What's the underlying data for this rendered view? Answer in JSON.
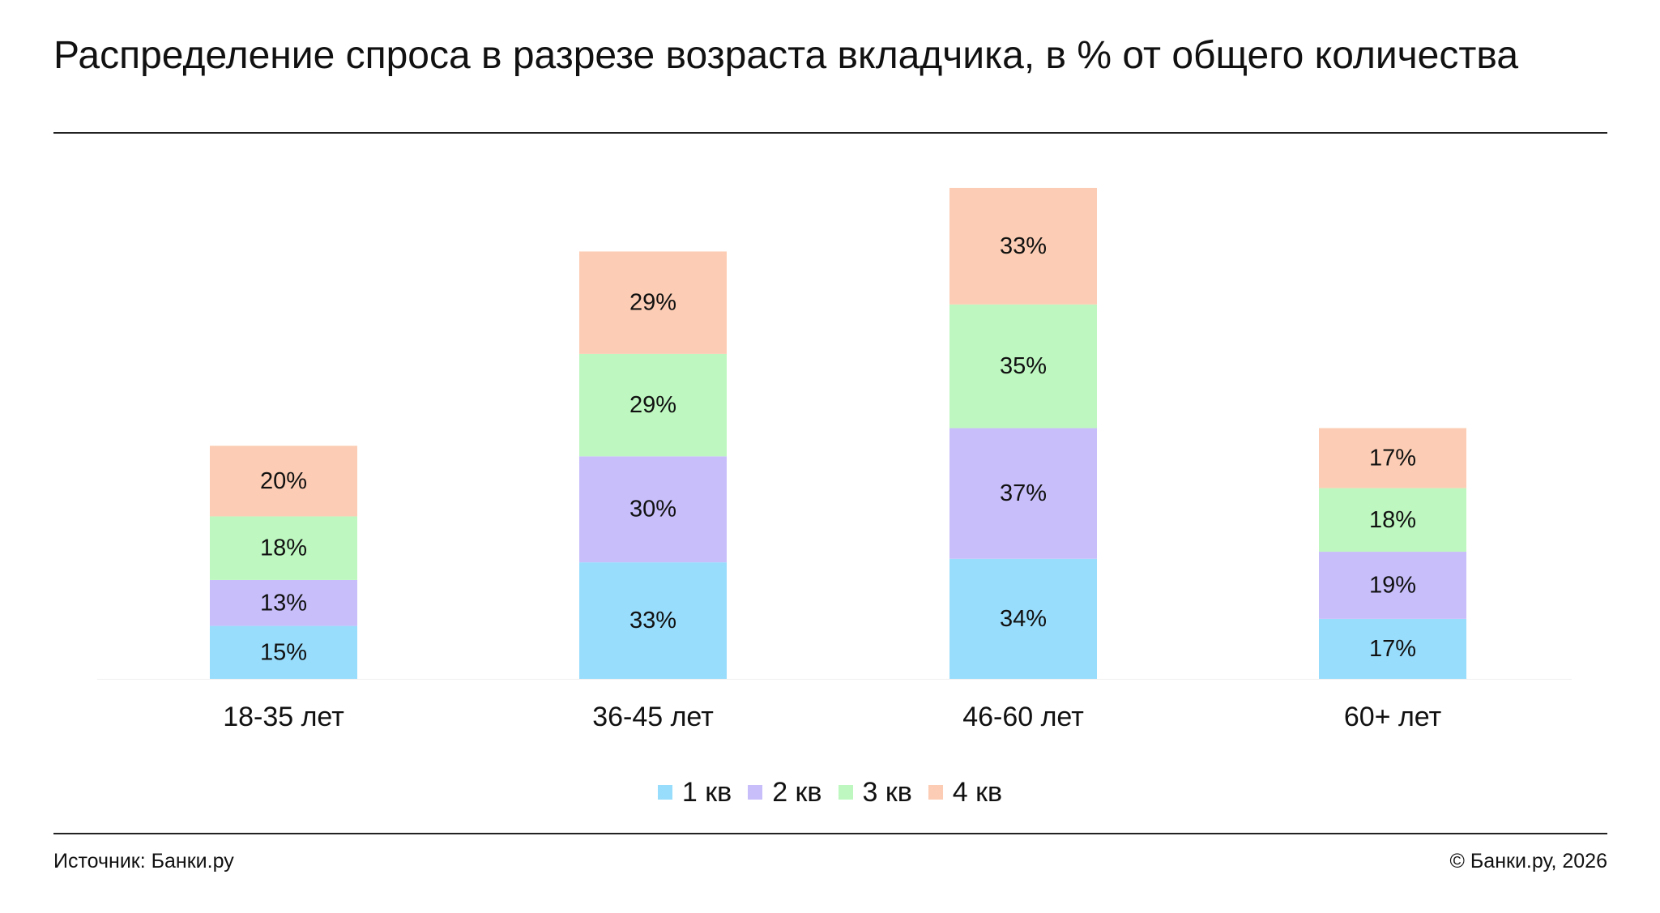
{
  "title": "Распределение спроса в разрезе возраста вкладчика, в % от общего количества",
  "source": "Источник: Банки.ру",
  "copyright": "© Банки.ру, 2026",
  "chart_data": {
    "type": "bar",
    "stacked": true,
    "categories": [
      "18-35 лет",
      "36-45 лет",
      "46-60 лет",
      "60+ лет"
    ],
    "series": [
      {
        "name": "1 кв",
        "color": "#99DDFC",
        "values": [
          15,
          33,
          34,
          17
        ],
        "labels": [
          "15%",
          "33%",
          "34%",
          "17%"
        ]
      },
      {
        "name": "2 кв",
        "color": "#C8BEFA",
        "values": [
          13,
          30,
          37,
          19
        ],
        "labels": [
          "13%",
          "30%",
          "37%",
          "19%"
        ]
      },
      {
        "name": "3 кв",
        "color": "#BEF8C0",
        "values": [
          18,
          29,
          35,
          18
        ],
        "labels": [
          "18%",
          "29%",
          "35%",
          "18%"
        ]
      },
      {
        "name": "4 кв",
        "color": "#FCCDB4",
        "values": [
          20,
          29,
          33,
          17
        ],
        "labels": [
          "20%",
          "29%",
          "33%",
          "17%"
        ]
      }
    ],
    "grid": false,
    "legend": "bottom-center"
  }
}
